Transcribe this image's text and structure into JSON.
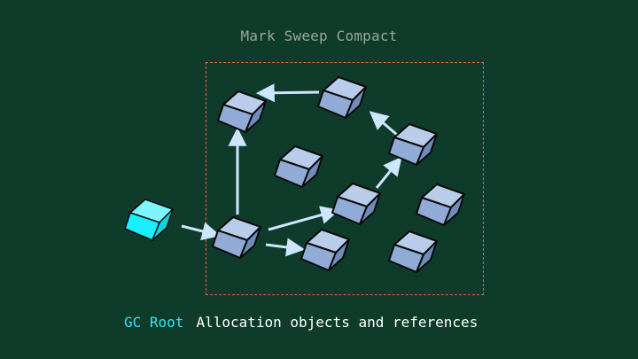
{
  "diagram": {
    "title": "Mark Sweep Compact",
    "legend": {
      "gc_root": "GC Root",
      "allocation": "Allocation objects and references"
    },
    "colors": {
      "background": "#0f3b2b",
      "object_fill": "#8fabd6",
      "root_fill": "#19f0ff",
      "reference_arrow": "#cfe6ff",
      "heap_border": "#e0663a"
    }
  }
}
